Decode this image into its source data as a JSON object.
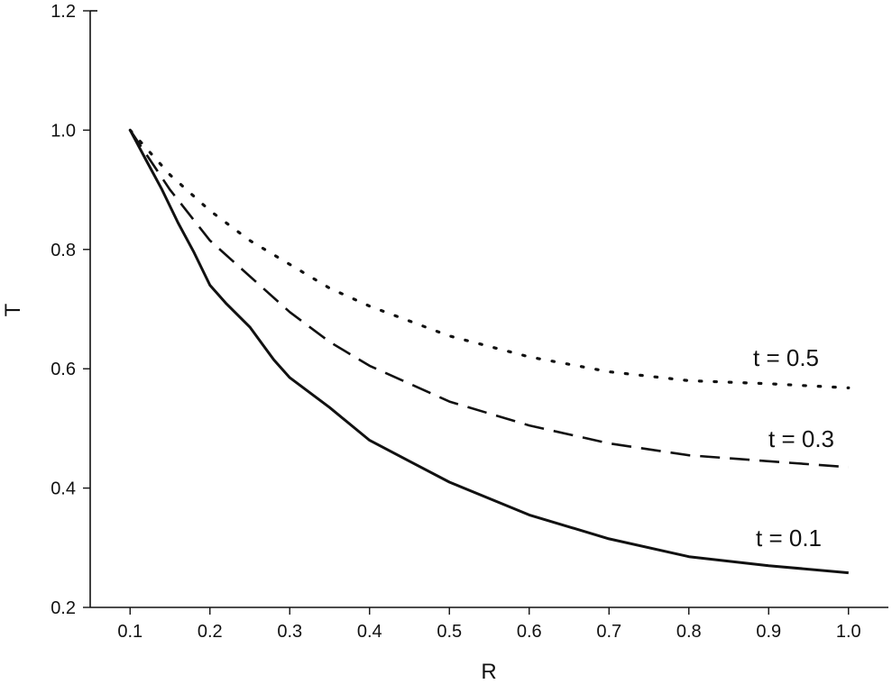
{
  "chart_data": {
    "type": "line",
    "title": "",
    "xlabel": "R",
    "ylabel": "T",
    "xlim": [
      0.05,
      1.05
    ],
    "ylim": [
      0.2,
      1.2
    ],
    "xticks": [
      "0.1",
      "0.2",
      "0.3",
      "0.4",
      "0.5",
      "0.6",
      "0.7",
      "0.8",
      "0.9",
      "1.0"
    ],
    "yticks": [
      "0.2",
      "0.4",
      "0.6",
      "0.8",
      "1.0",
      "1.2"
    ],
    "grid": false,
    "legend": "none",
    "series": [
      {
        "name": "t = 0.1",
        "style": "solid",
        "color": "#111111",
        "x": [
          0.1,
          0.12,
          0.14,
          0.16,
          0.18,
          0.2,
          0.22,
          0.25,
          0.28,
          0.3,
          0.35,
          0.4,
          0.45,
          0.5,
          0.6,
          0.7,
          0.8,
          0.9,
          1.0
        ],
        "y": [
          1.0,
          0.95,
          0.9,
          0.845,
          0.795,
          0.74,
          0.71,
          0.67,
          0.615,
          0.585,
          0.535,
          0.48,
          0.445,
          0.41,
          0.355,
          0.315,
          0.285,
          0.27,
          0.258
        ]
      },
      {
        "name": "t = 0.3",
        "style": "dashed",
        "color": "#111111",
        "x": [
          0.1,
          0.15,
          0.2,
          0.25,
          0.3,
          0.35,
          0.4,
          0.5,
          0.6,
          0.7,
          0.8,
          0.9,
          1.0
        ],
        "y": [
          1.0,
          0.9,
          0.815,
          0.755,
          0.695,
          0.645,
          0.605,
          0.545,
          0.505,
          0.475,
          0.455,
          0.445,
          0.435
        ]
      },
      {
        "name": "t = 0.5",
        "style": "dotted",
        "color": "#111111",
        "x": [
          0.1,
          0.15,
          0.2,
          0.25,
          0.3,
          0.35,
          0.4,
          0.5,
          0.6,
          0.7,
          0.8,
          0.9,
          1.0
        ],
        "y": [
          1.0,
          0.925,
          0.865,
          0.815,
          0.775,
          0.735,
          0.705,
          0.655,
          0.62,
          0.595,
          0.58,
          0.575,
          0.568
        ]
      }
    ],
    "annotations": [
      "t = 0.5",
      "t = 0.3",
      "t = 0.1"
    ]
  }
}
